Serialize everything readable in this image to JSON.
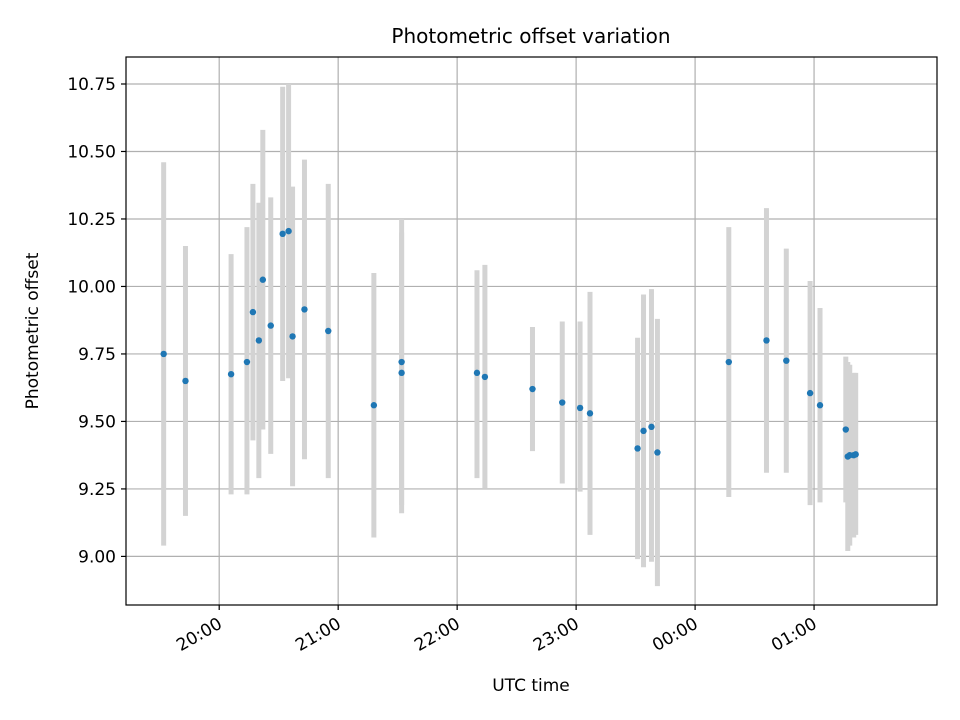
{
  "chart_data": {
    "type": "scatter",
    "title": "Photometric offset variation",
    "xlabel": "UTC time",
    "ylabel": "Photometric offset",
    "x_ticks": [
      "20:00",
      "21:00",
      "22:00",
      "23:00",
      "00:00",
      "01:00"
    ],
    "y_ticks": [
      "9.00",
      "9.25",
      "9.50",
      "9.75",
      "10.00",
      "10.25",
      "10.50",
      "10.75"
    ],
    "xlim": [
      "19:13",
      "02:02"
    ],
    "ylim": [
      8.82,
      10.85
    ],
    "grid": true,
    "colors": {
      "points": "#1f77b4",
      "errorbars": "#d3d3d3",
      "grid": "#b0b0b0"
    },
    "series": [
      {
        "points": [
          {
            "x": "19:32",
            "y": 9.75,
            "err_low": 9.04,
            "err_high": 10.46
          },
          {
            "x": "19:43",
            "y": 9.65,
            "err_low": 9.15,
            "err_high": 10.15
          },
          {
            "x": "20:06",
            "y": 9.675,
            "err_low": 9.23,
            "err_high": 10.12
          },
          {
            "x": "20:14",
            "y": 9.72,
            "err_low": 9.23,
            "err_high": 10.22
          },
          {
            "x": "20:17",
            "y": 9.905,
            "err_low": 9.43,
            "err_high": 10.38
          },
          {
            "x": "20:20",
            "y": 9.8,
            "err_low": 9.29,
            "err_high": 10.31
          },
          {
            "x": "20:22",
            "y": 10.025,
            "err_low": 9.47,
            "err_high": 10.58
          },
          {
            "x": "20:26",
            "y": 9.855,
            "err_low": 9.38,
            "err_high": 10.33
          },
          {
            "x": "20:32",
            "y": 10.195,
            "err_low": 9.65,
            "err_high": 10.74
          },
          {
            "x": "20:35",
            "y": 10.205,
            "err_low": 9.66,
            "err_high": 10.75
          },
          {
            "x": "20:37",
            "y": 9.815,
            "err_low": 9.26,
            "err_high": 10.37
          },
          {
            "x": "20:43",
            "y": 9.915,
            "err_low": 9.36,
            "err_high": 10.47
          },
          {
            "x": "20:55",
            "y": 9.835,
            "err_low": 9.29,
            "err_high": 10.38
          },
          {
            "x": "21:18",
            "y": 9.56,
            "err_low": 9.07,
            "err_high": 10.05
          },
          {
            "x": "21:32",
            "y": 9.72,
            "err_low": 9.19,
            "err_high": 10.25
          },
          {
            "x": "21:32",
            "y": 9.68,
            "err_low": 9.16,
            "err_high": 10.2
          },
          {
            "x": "22:10",
            "y": 9.68,
            "err_low": 9.29,
            "err_high": 10.06
          },
          {
            "x": "22:14",
            "y": 9.665,
            "err_low": 9.25,
            "err_high": 10.08
          },
          {
            "x": "22:38",
            "y": 9.62,
            "err_low": 9.39,
            "err_high": 9.85
          },
          {
            "x": "22:53",
            "y": 9.57,
            "err_low": 9.27,
            "err_high": 9.87
          },
          {
            "x": "23:02",
            "y": 9.55,
            "err_low": 9.24,
            "err_high": 9.87
          },
          {
            "x": "23:07",
            "y": 9.53,
            "err_low": 9.08,
            "err_high": 9.98
          },
          {
            "x": "23:31",
            "y": 9.4,
            "err_low": 8.99,
            "err_high": 9.81
          },
          {
            "x": "23:34",
            "y": 9.465,
            "err_low": 8.96,
            "err_high": 9.97
          },
          {
            "x": "23:38",
            "y": 9.48,
            "err_low": 8.98,
            "err_high": 9.99
          },
          {
            "x": "23:41",
            "y": 9.385,
            "err_low": 8.89,
            "err_high": 9.88
          },
          {
            "x": "00:17",
            "y": 9.72,
            "err_low": 9.22,
            "err_high": 10.22
          },
          {
            "x": "00:36",
            "y": 9.8,
            "err_low": 9.31,
            "err_high": 10.29
          },
          {
            "x": "00:46",
            "y": 9.725,
            "err_low": 9.31,
            "err_high": 10.14
          },
          {
            "x": "00:58",
            "y": 9.605,
            "err_low": 9.19,
            "err_high": 10.02
          },
          {
            "x": "01:03",
            "y": 9.56,
            "err_low": 9.2,
            "err_high": 9.92
          },
          {
            "x": "01:16",
            "y": 9.47,
            "err_low": 9.2,
            "err_high": 9.74
          },
          {
            "x": "01:17",
            "y": 9.37,
            "err_low": 9.02,
            "err_high": 9.72
          },
          {
            "x": "01:18",
            "y": 9.375,
            "err_low": 9.04,
            "err_high": 9.71
          },
          {
            "x": "01:20",
            "y": 9.375,
            "err_low": 9.07,
            "err_high": 9.68
          },
          {
            "x": "01:21",
            "y": 9.378,
            "err_low": 9.08,
            "err_high": 9.68
          }
        ]
      }
    ]
  }
}
